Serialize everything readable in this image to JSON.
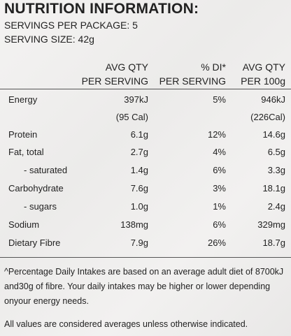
{
  "title": "NUTRITION INFORMATION:",
  "servings_per_package": "SERVINGS PER PACKAGE: 5",
  "serving_size": "SERVING SIZE: 42g",
  "headers": {
    "col1_line1": "AVG QTY",
    "col1_line2": "PER SERVING",
    "col2_line1": "% DI*",
    "col2_line2": "PER SERVING",
    "col3_line1": "AVG QTY",
    "col3_line2": "PER 100g"
  },
  "rows": [
    {
      "label": "Energy",
      "per_serving": "397kJ",
      "di": "5%",
      "per_100g": "946kJ"
    },
    {
      "label": "",
      "per_serving": "(95 Cal)",
      "di": "",
      "per_100g": "(226Cal)"
    },
    {
      "label": "Protein",
      "per_serving": "6.1g",
      "di": "12%",
      "per_100g": "14.6g"
    },
    {
      "label": "Fat, total",
      "per_serving": "2.7g",
      "di": "4%",
      "per_100g": "6.5g"
    },
    {
      "label": "- saturated",
      "per_serving": "1.4g",
      "di": "6%",
      "per_100g": "3.3g"
    },
    {
      "label": "Carbohydrate",
      "per_serving": "7.6g",
      "di": "3%",
      "per_100g": "18.1g"
    },
    {
      "label": "- sugars",
      "per_serving": "1.0g",
      "di": "1%",
      "per_100g": "2.4g"
    },
    {
      "label": "Sodium",
      "per_serving": "138mg",
      "di": "6%",
      "per_100g": "329mg"
    },
    {
      "label": "Dietary Fibre",
      "per_serving": "7.9g",
      "di": "26%",
      "per_100g": "18.7g"
    }
  ],
  "footnote_1": "^Percentage Daily Intakes are based on an average adult diet of 8700kJ and30g of fibre. Your daily intakes may be higher or lower depending onyour energy needs.",
  "footnote_2": "All values are considered averages unless otherwise indicated."
}
